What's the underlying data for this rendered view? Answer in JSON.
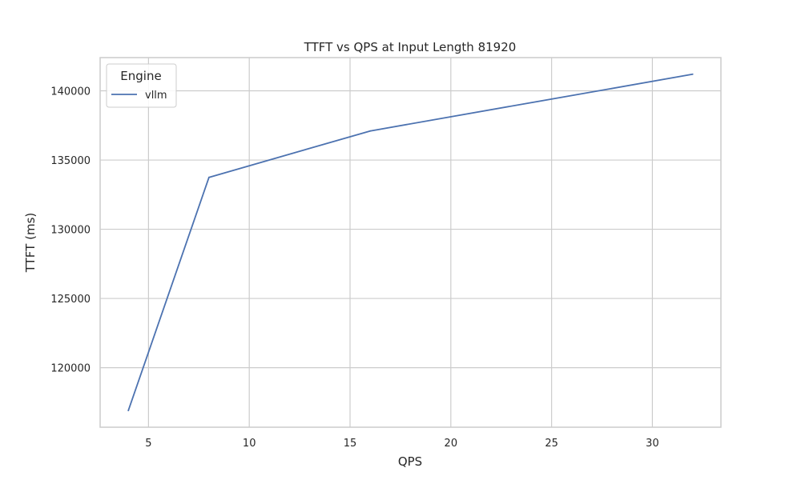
{
  "chart_data": {
    "type": "line",
    "title": "TTFT vs QPS at Input Length 81920",
    "xlabel": "QPS",
    "ylabel": "TTFT (ms)",
    "xlim": [
      2.6,
      33.4
    ],
    "ylim": [
      115700,
      142400
    ],
    "xticks": [
      5,
      10,
      15,
      20,
      25,
      30
    ],
    "yticks": [
      120000,
      125000,
      130000,
      135000,
      140000
    ],
    "grid": true,
    "legend": {
      "title": "Engine",
      "position": "top-left"
    },
    "series": [
      {
        "name": "vllm",
        "color": "#4c72b0",
        "x": [
          4,
          8,
          16,
          32
        ],
        "y": [
          116900,
          133750,
          137100,
          141200
        ]
      }
    ]
  }
}
